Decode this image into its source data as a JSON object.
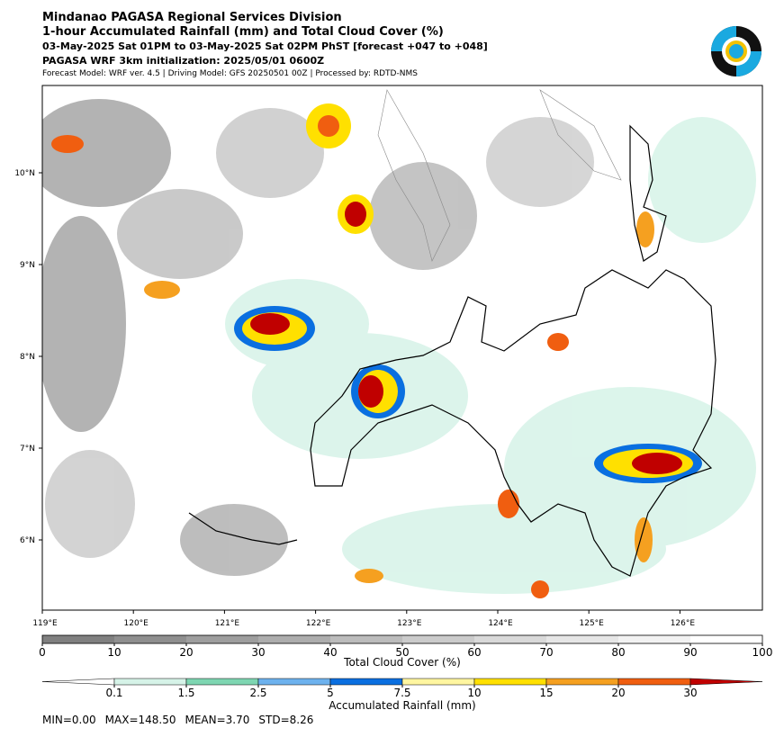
{
  "header": {
    "lines": [
      "Mindanao PAGASA Regional Services Division",
      "1-hour Accumulated Rainfall (mm) and Total Cloud Cover (%)",
      "03-May-2025 Sat 01PM to 03-May-2025 Sat 02PM PhST [forecast +047 to +048]",
      "PAGASA WRF 3km initialization: 2025/05/01 0600Z",
      "Forecast Model: WRF ver. 4.5 | Driving Model: GFS 20250501 00Z | Processed by: RDTD-NMS"
    ]
  },
  "map": {
    "lat_labels": [
      "10°N",
      "9°N",
      "8°N",
      "7°N",
      "6°N"
    ],
    "lon_labels": [
      "119°E",
      "120°E",
      "121°E",
      "122°E",
      "123°E",
      "124°E",
      "125°E",
      "126°E"
    ]
  },
  "cloud_colorbar": {
    "ticks": [
      0,
      10,
      20,
      30,
      40,
      50,
      60,
      70,
      80,
      90,
      100
    ],
    "colors": [
      "#808080",
      "#8f8f8f",
      "#9e9e9e",
      "#adadad",
      "#bcbcbc",
      "#cbcbcb",
      "#d9d9d9",
      "#e6e6e6",
      "#f2f2f2",
      "#ffffff"
    ],
    "label": "Total Cloud Cover (%)"
  },
  "rain_colorbar": {
    "ticks": [
      0.1,
      1.5,
      2.5,
      5,
      7.5,
      10,
      15,
      20,
      30
    ],
    "colors": [
      "#ffffff",
      "#d6f3e8",
      "#7ed6b2",
      "#6db2ee",
      "#0a6fe0",
      "#fff6a0",
      "#ffe000",
      "#f5a020",
      "#f05e10",
      "#c00000"
    ],
    "label": "Accumulated Rainfall (mm)"
  },
  "stats": [
    "MIN=0.00",
    "MAX=148.50",
    "MEAN=3.70",
    "STD=8.26"
  ]
}
